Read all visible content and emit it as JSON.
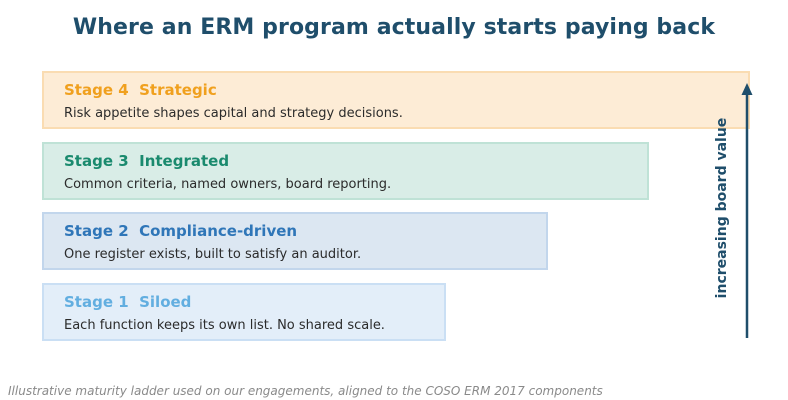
{
  "title": "Where an ERM program actually starts paying back",
  "stages": [
    {
      "label": "Stage 4  Strategic",
      "description": "Risk appetite shapes capital and strategy decisions.",
      "color": "#f0a01e",
      "fill": "#fdecd6"
    },
    {
      "label": "Stage 3  Integrated",
      "description": "Common criteria, named owners, board reporting.",
      "color": "#1a8a6e",
      "fill": "#d9ede7"
    },
    {
      "label": "Stage 2  Compliance-driven",
      "description": "One register exists, built to satisfy an auditor.",
      "color": "#2f76b8",
      "fill": "#dce7f2"
    },
    {
      "label": "Stage 1  Siloed",
      "description": "Each function keeps its own list. No shared scale.",
      "color": "#62aee0",
      "fill": "#e3eef9"
    }
  ],
  "axis_label": "increasing board value",
  "axis_color": "#1f4e6b",
  "footnote": "Illustrative maturity ladder used on our engagements, aligned to the COSO ERM 2017 components"
}
